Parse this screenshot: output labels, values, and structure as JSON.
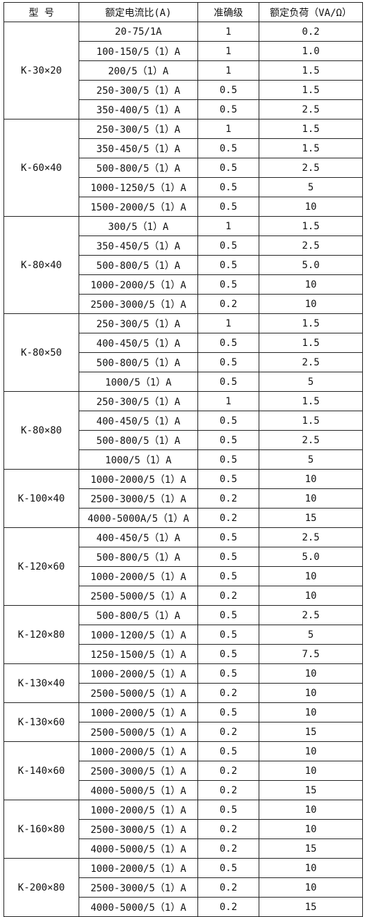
{
  "headers": [
    "型 号",
    "额定电流比(A)",
    "准确级",
    "额定负荷（VA/Ω）"
  ],
  "groups": [
    {
      "model": "K-30×20",
      "rows": [
        [
          "20-75/1A",
          "1",
          "0.2"
        ],
        [
          "100-150/5（1）A",
          "1",
          "1.0"
        ],
        [
          "200/5（1）A",
          "1",
          "1.5"
        ],
        [
          "250-300/5（1）A",
          "0.5",
          "1.5"
        ],
        [
          "350-400/5（1）A",
          "0.5",
          "2.5"
        ]
      ]
    },
    {
      "model": "K-60×40",
      "rows": [
        [
          "250-300/5（1）A",
          "1",
          "1.5"
        ],
        [
          "350-450/5（1）A",
          "0.5",
          "1.5"
        ],
        [
          "500-800/5（1）A",
          "0.5",
          "2.5"
        ],
        [
          "1000-1250/5（1）A",
          "0.5",
          "5"
        ],
        [
          "1500-2000/5（1）A",
          "0.5",
          "10"
        ]
      ]
    },
    {
      "model": "K-80×40",
      "rows": [
        [
          "300/5（1）A",
          "1",
          "1.5"
        ],
        [
          "350-450/5（1）A",
          "0.5",
          "2.5"
        ],
        [
          "500-800/5（1）A",
          "0.5",
          "5.0"
        ],
        [
          "1000-2000/5（1）A",
          "0.5",
          "10"
        ],
        [
          "2500-3000/5（1）A",
          "0.2",
          "10"
        ]
      ]
    },
    {
      "model": "K-80×50",
      "rows": [
        [
          "250-300/5（1）A",
          "1",
          "1.5"
        ],
        [
          "400-450/5（1）A",
          "0.5",
          "1.5"
        ],
        [
          "500-800/5（1）A",
          "0.5",
          "2.5"
        ],
        [
          "1000/5（1）A",
          "0.5",
          "5"
        ]
      ]
    },
    {
      "model": "K-80×80",
      "rows": [
        [
          "250-300/5（1）A",
          "1",
          "1.5"
        ],
        [
          "400-450/5（1）A",
          "0.5",
          "1.5"
        ],
        [
          "500-800/5（1）A",
          "0.5",
          "2.5"
        ],
        [
          "1000/5（1）A",
          "0.5",
          "5"
        ]
      ]
    },
    {
      "model": "K-100×40",
      "rows": [
        [
          "1000-2000/5（1）A",
          "0.5",
          "10"
        ],
        [
          "2500-3000/5（1）A",
          "0.2",
          "10"
        ],
        [
          "4000-5000A/5（1）A",
          "0.2",
          "15"
        ]
      ]
    },
    {
      "model": "K-120×60",
      "rows": [
        [
          "400-450/5（1）A",
          "0.5",
          "2.5"
        ],
        [
          "500-800/5（1）A",
          "0.5",
          "5.0"
        ],
        [
          "1000-2000/5（1）A",
          "0.5",
          "10"
        ],
        [
          "2500-5000/5（1）A",
          "0.2",
          "10"
        ]
      ]
    },
    {
      "model": "K-120×80",
      "rows": [
        [
          "500-800/5（1）A",
          "0.5",
          "2.5"
        ],
        [
          "1000-1200/5（1）A",
          "0.5",
          "5"
        ],
        [
          "1250-1500/5（1）A",
          "0.5",
          "7.5"
        ]
      ]
    },
    {
      "model": "K-130×40",
      "rows": [
        [
          "1000-2000/5（1）A",
          "0.5",
          "10"
        ],
        [
          "2500-5000/5（1）A",
          "0.2",
          "10"
        ]
      ]
    },
    {
      "model": "K-130×60",
      "rows": [
        [
          "1000-2000/5（1）A",
          "0.5",
          "10"
        ],
        [
          "2500-5000/5（1）A",
          "0.2",
          "15"
        ]
      ]
    },
    {
      "model": "K-140×60",
      "rows": [
        [
          "1000-2000/5（1）A",
          "0.5",
          "10"
        ],
        [
          "2500-3000/5（1）A",
          "0.2",
          "10"
        ],
        [
          "4000-5000/5（1）A",
          "0.2",
          "15"
        ]
      ]
    },
    {
      "model": "K-160×80",
      "rows": [
        [
          "1000-2000/5（1）A",
          "0.5",
          "10"
        ],
        [
          "2500-3000/5（1）A",
          "0.2",
          "10"
        ],
        [
          "4000-5000/5（1）A",
          "0.2",
          "15"
        ]
      ]
    },
    {
      "model": "K-200×80",
      "rows": [
        [
          "1000-2000/5（1）A",
          "0.5",
          "10"
        ],
        [
          "2500-3000/5（1）A",
          "0.2",
          "10"
        ],
        [
          "4000-5000/5（1）A",
          "0.2",
          "15"
        ]
      ]
    }
  ]
}
